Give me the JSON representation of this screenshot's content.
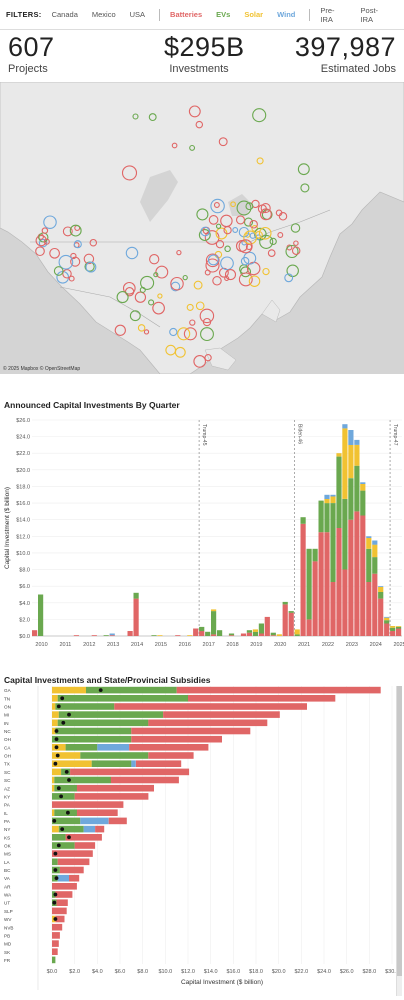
{
  "filters": {
    "label": "FILTERS:",
    "countries": [
      "Canada",
      "Mexico",
      "USA"
    ],
    "sectors": [
      {
        "label": "Batteries",
        "color": "#e06666"
      },
      {
        "label": "EVs",
        "color": "#6aa84f"
      },
      {
        "label": "Solar",
        "color": "#f1c232"
      },
      {
        "label": "Wind",
        "color": "#6fa8dc"
      }
    ],
    "periods": [
      "Pre-IRA",
      "Post-IRA"
    ]
  },
  "kpis": [
    {
      "value": "607",
      "caption": "Projects"
    },
    {
      "value": "$295B",
      "caption": "Investments"
    },
    {
      "value": "397,987",
      "caption": "Estimated Jobs"
    }
  ],
  "map": {
    "credit": "© 2025 Mapbox © OpenStreetMap"
  },
  "colors": {
    "batteries": "#e06666",
    "evs": "#6aa84f",
    "solar": "#f1c232",
    "wind": "#6fa8dc",
    "subsidy": "#111111"
  },
  "chart_data": [
    {
      "type": "bar",
      "title": "Announced Capital Investments By Quarter",
      "ylabel": "Capital Investment ($ billion)",
      "ylim": [
        0,
        26
      ],
      "yticks": [
        "$0.0",
        "$2.0",
        "$4.0",
        "$6.0",
        "$8.0",
        "$10.0",
        "$12.0",
        "$14.0",
        "$16.0",
        "$18.0",
        "$20.0",
        "$22.0",
        "$24.0",
        "$26.0"
      ],
      "xticks": [
        "2010",
        "2011",
        "2012",
        "2013",
        "2014",
        "2015",
        "2016",
        "2017",
        "2018",
        "2019",
        "2020",
        "2021",
        "2022",
        "2023",
        "2024",
        "2025"
      ],
      "xlim": [
        2010,
        2025.5
      ],
      "annotations": [
        {
          "x": 2017.0,
          "label": "Trump-45"
        },
        {
          "x": 2021.0,
          "label": "Biden-46"
        },
        {
          "x": 2025.0,
          "label": "Trump-47"
        }
      ],
      "series_order": [
        "batteries",
        "evs",
        "solar",
        "wind"
      ],
      "bars": [
        {
          "x": 2010.0,
          "batteries": 0.7,
          "evs": 0.0,
          "solar": 0.0,
          "wind": 0.0
        },
        {
          "x": 2010.25,
          "batteries": 0.0,
          "evs": 5.0,
          "solar": 0.0,
          "wind": 0.0
        },
        {
          "x": 2011.75,
          "batteries": 0.1,
          "evs": 0.0,
          "solar": 0.0,
          "wind": 0.0
        },
        {
          "x": 2012.5,
          "batteries": 0.1,
          "evs": 0.0,
          "solar": 0.0,
          "wind": 0.0
        },
        {
          "x": 2013.0,
          "batteries": 0.0,
          "evs": 0.1,
          "solar": 0.0,
          "wind": 0.0
        },
        {
          "x": 2013.25,
          "batteries": 0.1,
          "evs": 0.0,
          "solar": 0.0,
          "wind": 0.2
        },
        {
          "x": 2014.0,
          "batteries": 0.6,
          "evs": 0.0,
          "solar": 0.0,
          "wind": 0.0
        },
        {
          "x": 2014.25,
          "batteries": 4.5,
          "evs": 0.7,
          "solar": 0.0,
          "wind": 0.0
        },
        {
          "x": 2015.0,
          "batteries": 0.0,
          "evs": 0.1,
          "solar": 0.0,
          "wind": 0.0
        },
        {
          "x": 2015.25,
          "batteries": 0.0,
          "evs": 0.0,
          "solar": 0.1,
          "wind": 0.0
        },
        {
          "x": 2016.0,
          "batteries": 0.1,
          "evs": 0.0,
          "solar": 0.0,
          "wind": 0.0
        },
        {
          "x": 2016.5,
          "batteries": 0.0,
          "evs": 0.0,
          "solar": 0.1,
          "wind": 0.0
        },
        {
          "x": 2016.75,
          "batteries": 0.9,
          "evs": 0.0,
          "solar": 0.0,
          "wind": 0.0
        },
        {
          "x": 2017.0,
          "batteries": 0.6,
          "evs": 0.5,
          "solar": 0.0,
          "wind": 0.0
        },
        {
          "x": 2017.25,
          "batteries": 0.0,
          "evs": 0.5,
          "solar": 0.0,
          "wind": 0.0
        },
        {
          "x": 2017.5,
          "batteries": 0.2,
          "evs": 2.8,
          "solar": 0.2,
          "wind": 0.0
        },
        {
          "x": 2017.75,
          "batteries": 0.0,
          "evs": 0.7,
          "solar": 0.0,
          "wind": 0.0
        },
        {
          "x": 2018.25,
          "batteries": 0.1,
          "evs": 0.2,
          "solar": 0.0,
          "wind": 0.0
        },
        {
          "x": 2018.75,
          "batteries": 0.3,
          "evs": 0.0,
          "solar": 0.0,
          "wind": 0.0
        },
        {
          "x": 2019.0,
          "batteries": 0.4,
          "evs": 0.3,
          "solar": 0.0,
          "wind": 0.0
        },
        {
          "x": 2019.25,
          "batteries": 0.0,
          "evs": 0.5,
          "solar": 0.3,
          "wind": 0.0
        },
        {
          "x": 2019.5,
          "batteries": 0.3,
          "evs": 1.2,
          "solar": 0.0,
          "wind": 0.0
        },
        {
          "x": 2019.75,
          "batteries": 2.3,
          "evs": 0.0,
          "solar": 0.0,
          "wind": 0.0
        },
        {
          "x": 2020.0,
          "batteries": 0.1,
          "evs": 0.3,
          "solar": 0.0,
          "wind": 0.0
        },
        {
          "x": 2020.25,
          "batteries": 0.0,
          "evs": 0.0,
          "solar": 0.2,
          "wind": 0.0
        },
        {
          "x": 2020.5,
          "batteries": 3.8,
          "evs": 0.3,
          "solar": 0.0,
          "wind": 0.0
        },
        {
          "x": 2020.75,
          "batteries": 2.8,
          "evs": 0.2,
          "solar": 0.0,
          "wind": 0.0
        },
        {
          "x": 2021.0,
          "batteries": 0.0,
          "evs": 0.2,
          "solar": 0.6,
          "wind": 0.0
        },
        {
          "x": 2021.25,
          "batteries": 13.5,
          "evs": 0.8,
          "solar": 0.0,
          "wind": 0.0
        },
        {
          "x": 2021.5,
          "batteries": 2.0,
          "evs": 8.5,
          "solar": 0.0,
          "wind": 0.0
        },
        {
          "x": 2021.75,
          "batteries": 9.0,
          "evs": 1.5,
          "solar": 0.0,
          "wind": 0.0
        },
        {
          "x": 2022.0,
          "batteries": 12.5,
          "evs": 3.8,
          "solar": 0.0,
          "wind": 0.0
        },
        {
          "x": 2022.25,
          "batteries": 12.5,
          "evs": 3.5,
          "solar": 0.5,
          "wind": 0.5
        },
        {
          "x": 2022.5,
          "batteries": 6.5,
          "evs": 9.5,
          "solar": 0.8,
          "wind": 0.2
        },
        {
          "x": 2022.75,
          "batteries": 13.0,
          "evs": 8.6,
          "solar": 0.4,
          "wind": 0.0
        },
        {
          "x": 2023.0,
          "batteries": 8.0,
          "evs": 8.5,
          "solar": 8.5,
          "wind": 0.5
        },
        {
          "x": 2023.25,
          "batteries": 14.0,
          "evs": 5.0,
          "solar": 4.0,
          "wind": 1.8
        },
        {
          "x": 2023.5,
          "batteries": 15.0,
          "evs": 5.5,
          "solar": 2.5,
          "wind": 0.6
        },
        {
          "x": 2023.75,
          "batteries": 14.5,
          "evs": 3.0,
          "solar": 0.8,
          "wind": 0.2
        },
        {
          "x": 2024.0,
          "batteries": 6.5,
          "evs": 4.0,
          "solar": 1.3,
          "wind": 0.2
        },
        {
          "x": 2024.25,
          "batteries": 7.5,
          "evs": 2.0,
          "solar": 1.5,
          "wind": 0.5
        },
        {
          "x": 2024.5,
          "batteries": 4.5,
          "evs": 0.8,
          "solar": 0.6,
          "wind": 0.1
        },
        {
          "x": 2024.75,
          "batteries": 1.5,
          "evs": 0.4,
          "solar": 0.3,
          "wind": 0.1
        },
        {
          "x": 2025.0,
          "batteries": 0.6,
          "evs": 0.4,
          "solar": 0.2,
          "wind": 0.0
        },
        {
          "x": 2025.25,
          "batteries": 0.9,
          "evs": 0.2,
          "solar": 0.1,
          "wind": 0.0
        }
      ]
    },
    {
      "type": "bar",
      "orientation": "horizontal",
      "title": "Capital Investments and State/Provincial Subsidies",
      "xlabel": "Capital Investment ($ billion)",
      "xlim": [
        0,
        30
      ],
      "xticks": [
        "$0.0",
        "$2.0",
        "$4.0",
        "$6.0",
        "$8.0",
        "$10.0",
        "$12.0",
        "$14.0",
        "$16.0",
        "$18.0",
        "$20.0",
        "$22.0",
        "$24.0",
        "$26.0",
        "$28.0",
        "$30.0"
      ],
      "series_order": [
        "solar",
        "evs",
        "wind",
        "batteries"
      ],
      "rows": [
        {
          "label": "GA",
          "solar": 3.0,
          "evs": 8.0,
          "wind": 0.0,
          "batteries": 18.0,
          "subsidy": 4.3
        },
        {
          "label": "TN",
          "solar": 0.5,
          "evs": 11.5,
          "wind": 0.0,
          "batteries": 13.0,
          "subsidy": 0.9
        },
        {
          "label": "ON",
          "solar": 0.3,
          "evs": 5.2,
          "wind": 0.0,
          "batteries": 17.0,
          "subsidy": 0.6
        },
        {
          "label": "MI",
          "solar": 0.6,
          "evs": 9.2,
          "wind": 0.0,
          "batteries": 10.3,
          "subsidy": 1.5
        },
        {
          "label": "IN",
          "solar": 0.5,
          "evs": 8.0,
          "wind": 0.0,
          "batteries": 10.5,
          "subsidy": 1.0
        },
        {
          "label": "NC",
          "solar": 0.3,
          "evs": 6.7,
          "wind": 0.0,
          "batteries": 10.5,
          "subsidy": 0.4
        },
        {
          "label": "OH",
          "solar": 0.0,
          "evs": 7.0,
          "wind": 0.0,
          "batteries": 8.0,
          "subsidy": 0.4
        },
        {
          "label": "CA",
          "solar": 1.2,
          "evs": 2.8,
          "wind": 2.8,
          "batteries": 7.0,
          "subsidy": 0.4
        },
        {
          "label": "OH",
          "solar": 2.5,
          "evs": 6.0,
          "wind": 0.0,
          "batteries": 4.0,
          "subsidy": 0.5
        },
        {
          "label": "TX",
          "solar": 3.5,
          "evs": 3.5,
          "wind": 0.4,
          "batteries": 4.0,
          "subsidy": 0.3
        },
        {
          "label": "SC",
          "solar": 0.8,
          "evs": 0.8,
          "wind": 0.0,
          "batteries": 10.5,
          "subsidy": 1.3
        },
        {
          "label": "SC",
          "solar": 0.2,
          "evs": 5.0,
          "wind": 0.0,
          "batteries": 6.0,
          "subsidy": 1.5
        },
        {
          "label": "AZ",
          "solar": 0.2,
          "evs": 2.0,
          "wind": 0.0,
          "batteries": 6.8,
          "subsidy": 0.6
        },
        {
          "label": "KY",
          "solar": 0.0,
          "evs": 2.0,
          "wind": 0.0,
          "batteries": 6.5,
          "subsidy": 0.8
        },
        {
          "label": "PA",
          "solar": 0.0,
          "evs": 0.0,
          "wind": 0.0,
          "batteries": 6.3,
          "subsidy": null
        },
        {
          "label": "IL",
          "solar": 0.2,
          "evs": 2.0,
          "wind": 0.0,
          "batteries": 3.6,
          "subsidy": 1.4
        },
        {
          "label": "PA",
          "solar": 0.0,
          "evs": 2.5,
          "wind": 2.5,
          "batteries": 1.6,
          "subsidy": 0.2
        },
        {
          "label": "NY",
          "solar": 0.6,
          "evs": 2.2,
          "wind": 1.0,
          "batteries": 0.8,
          "subsidy": 0.9
        },
        {
          "label": "KS",
          "solar": 0.0,
          "evs": 1.2,
          "wind": 0.0,
          "batteries": 3.2,
          "subsidy": 1.5
        },
        {
          "label": "OK",
          "solar": 0.0,
          "evs": 2.0,
          "wind": 0.0,
          "batteries": 1.8,
          "subsidy": 0.6
        },
        {
          "label": "MS",
          "solar": 0.0,
          "evs": 0.0,
          "wind": 0.0,
          "batteries": 3.6,
          "subsidy": 0.3
        },
        {
          "label": "LA",
          "solar": 0.0,
          "evs": 0.5,
          "wind": 0.0,
          "batteries": 2.8,
          "subsidy": null
        },
        {
          "label": "BC",
          "solar": 0.0,
          "evs": 0.7,
          "wind": 0.0,
          "batteries": 2.1,
          "subsidy": 0.3
        },
        {
          "label": "VA",
          "solar": 0.0,
          "evs": 0.5,
          "wind": 1.0,
          "batteries": 0.9,
          "subsidy": 0.4
        },
        {
          "label": "AR",
          "solar": 0.0,
          "evs": 0.0,
          "wind": 0.0,
          "batteries": 2.2,
          "subsidy": null
        },
        {
          "label": "WA",
          "solar": 0.0,
          "evs": 0.3,
          "wind": 0.0,
          "batteries": 1.5,
          "subsidy": 0.3
        },
        {
          "label": "UT",
          "solar": 0.0,
          "evs": 0.4,
          "wind": 0.0,
          "batteries": 1.0,
          "subsidy": 0.2
        },
        {
          "label": "SLP",
          "solar": 0.0,
          "evs": 0.0,
          "wind": 0.0,
          "batteries": 1.3,
          "subsidy": null
        },
        {
          "label": "WV",
          "solar": 0.3,
          "evs": 0.0,
          "wind": 0.0,
          "batteries": 0.8,
          "subsidy": 0.3
        },
        {
          "label": "NVB",
          "solar": 0.0,
          "evs": 0.0,
          "wind": 0.0,
          "batteries": 0.9,
          "subsidy": null
        },
        {
          "label": "PB",
          "solar": 0.0,
          "evs": 0.0,
          "wind": 0.0,
          "batteries": 0.7,
          "subsidy": null
        },
        {
          "label": "MD",
          "solar": 0.0,
          "evs": 0.0,
          "wind": 0.0,
          "batteries": 0.6,
          "subsidy": null
        },
        {
          "label": "SK",
          "solar": 0.0,
          "evs": 0.0,
          "wind": 0.0,
          "batteries": 0.5,
          "subsidy": null
        },
        {
          "label": "FR",
          "solar": 0.0,
          "evs": 0.3,
          "wind": 0.0,
          "batteries": 0.0,
          "subsidy": null
        }
      ]
    }
  ]
}
